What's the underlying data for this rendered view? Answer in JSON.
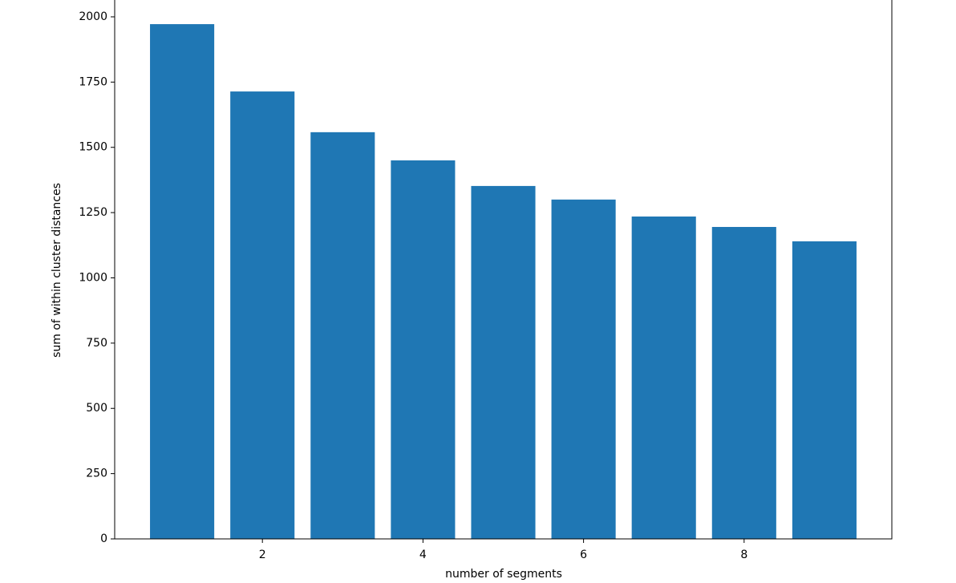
{
  "chart_data": {
    "type": "bar",
    "x_label": "number of segments",
    "y_label": "sum of within cluster distances",
    "x": [
      1,
      2,
      3,
      4,
      5,
      6,
      7,
      8,
      9
    ],
    "values": [
      1972,
      1714,
      1558,
      1450,
      1352,
      1300,
      1235,
      1195,
      1140
    ],
    "color": "#1f77b4",
    "xlim": [
      0.16,
      9.84
    ],
    "xticks": [
      2,
      4,
      6,
      8
    ],
    "ylim": [
      0,
      2070.6
    ],
    "yticks": [
      0,
      250,
      500,
      750,
      1000,
      1250,
      1500,
      1750,
      2000
    ]
  }
}
